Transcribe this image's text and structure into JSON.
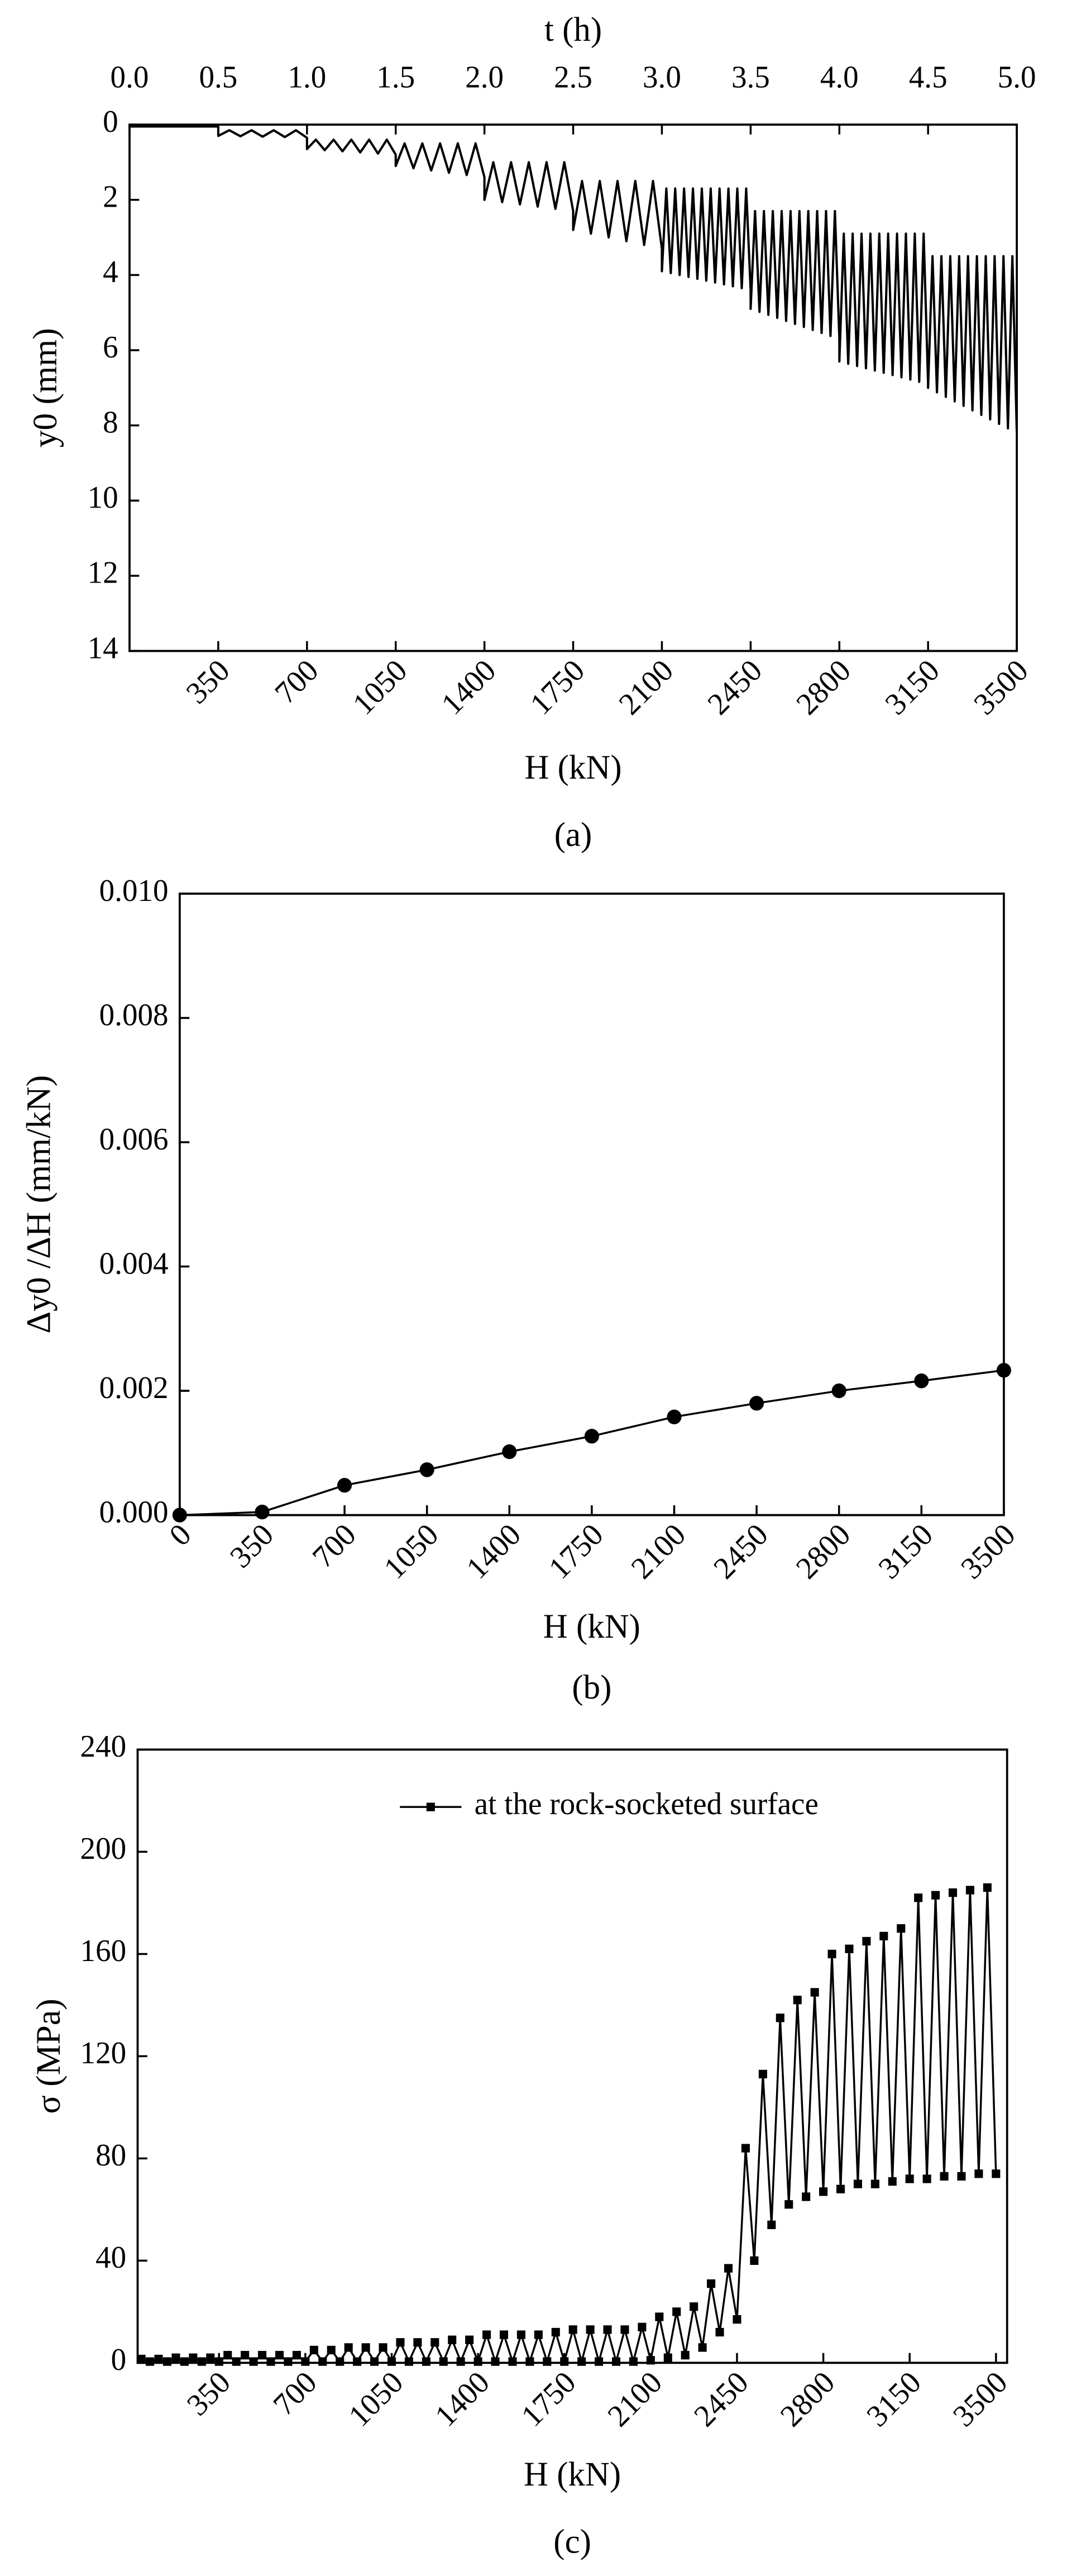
{
  "chart_data": [
    {
      "type": "line",
      "caption": "(a)",
      "xlabel": "t (h)",
      "x2label": "H (kN)",
      "ylabel": "y0 (mm)",
      "xaxis_position": "top",
      "yinvert": true,
      "xlim": [
        0,
        5
      ],
      "xticks": [
        {
          "value": 0,
          "label": "0.0"
        },
        0.5,
        {
          "value": 1,
          "label": "1.0"
        },
        1.5,
        {
          "value": 2,
          "label": "2.0"
        },
        2.5,
        {
          "value": 3,
          "label": "3.0"
        },
        3.5,
        {
          "value": 4,
          "label": "4.0"
        },
        4.5,
        {
          "value": 5,
          "label": "5.0"
        }
      ],
      "x2lim": [
        0,
        3500
      ],
      "x2ticks": [
        350,
        700,
        1050,
        1400,
        1750,
        2100,
        2450,
        2800,
        3150,
        3500
      ],
      "ylim": [
        0,
        14
      ],
      "yticks": [
        0,
        2,
        4,
        6,
        8,
        10,
        12,
        14
      ],
      "x": [
        0,
        0.5,
        0.5,
        0.5625,
        0.625,
        0.6875,
        0.75,
        0.8125,
        0.875,
        0.9375,
        1,
        1,
        1.05,
        1.1,
        1.15,
        1.2,
        1.25,
        1.3,
        1.35,
        1.4,
        1.45,
        1.5,
        1.5,
        1.55,
        1.6,
        1.65,
        1.7,
        1.75,
        1.8,
        1.85,
        1.9,
        1.95,
        2,
        2,
        2.05,
        2.1,
        2.15,
        2.2,
        2.25,
        2.3,
        2.35,
        2.4,
        2.45,
        2.5,
        2.5,
        2.55,
        2.6,
        2.65,
        2.7,
        2.75,
        2.8,
        2.85,
        2.9,
        2.95,
        3,
        3,
        3.025,
        3.05,
        3.075,
        3.1,
        3.125,
        3.15,
        3.175,
        3.2,
        3.225,
        3.25,
        3.275,
        3.3,
        3.325,
        3.35,
        3.375,
        3.4,
        3.425,
        3.45,
        3.475,
        3.5,
        3.5,
        3.525,
        3.55,
        3.575,
        3.6,
        3.625,
        3.65,
        3.675,
        3.7,
        3.725,
        3.75,
        3.775,
        3.8,
        3.825,
        3.85,
        3.875,
        3.9,
        3.925,
        3.95,
        3.975,
        4,
        4,
        4.025,
        4.05,
        4.075,
        4.1,
        4.125,
        4.15,
        4.175,
        4.2,
        4.225,
        4.25,
        4.275,
        4.3,
        4.325,
        4.35,
        4.375,
        4.4,
        4.425,
        4.45,
        4.475,
        4.5,
        4.5,
        4.525,
        4.55,
        4.575,
        4.6,
        4.625,
        4.65,
        4.675,
        4.7,
        4.725,
        4.75,
        4.775,
        4.8,
        4.825,
        4.85,
        4.875,
        4.9,
        4.925,
        4.95,
        4.975,
        5
      ],
      "series": [
        {
          "color": "#000000",
          "values": [
            0.05,
            0.05,
            0.3,
            0.15,
            0.31,
            0.15,
            0.32,
            0.15,
            0.33,
            0.15,
            0.35,
            0.65,
            0.4,
            0.68,
            0.4,
            0.71,
            0.4,
            0.74,
            0.4,
            0.77,
            0.4,
            0.8,
            1.1,
            0.5,
            1.16,
            0.5,
            1.22,
            0.5,
            1.28,
            0.5,
            1.34,
            0.5,
            1.4,
            2,
            1,
            2.06,
            1,
            2.12,
            1,
            2.18,
            1,
            2.24,
            1,
            2.3,
            2.8,
            1.5,
            2.9,
            1.5,
            3,
            1.5,
            3.1,
            1.5,
            3.2,
            1.5,
            3.3,
            3.9,
            1.7,
            3.95,
            1.7,
            4,
            1.7,
            4.05,
            1.7,
            4.1,
            1.7,
            4.15,
            1.7,
            4.2,
            1.7,
            4.25,
            1.7,
            4.3,
            1.7,
            4.35,
            1.7,
            4.4,
            4.9,
            2.3,
            4.98,
            2.3,
            5.06,
            2.3,
            5.14,
            2.3,
            5.22,
            2.3,
            5.3,
            2.3,
            5.38,
            2.3,
            5.46,
            2.3,
            5.54,
            2.3,
            5.62,
            2.3,
            5.7,
            6.3,
            2.9,
            6.36,
            2.9,
            6.42,
            2.9,
            6.48,
            2.9,
            6.54,
            2.9,
            6.6,
            2.9,
            6.66,
            2.9,
            6.72,
            2.9,
            6.78,
            2.9,
            6.84,
            2.9,
            6.9,
            7,
            3.5,
            7.12,
            3.5,
            7.24,
            3.5,
            7.36,
            3.5,
            7.48,
            3.5,
            7.6,
            3.5,
            7.72,
            3.5,
            7.84,
            3.5,
            7.96,
            3.5,
            8.08,
            3.5,
            8.2
          ]
        }
      ]
    },
    {
      "type": "line",
      "caption": "(b)",
      "xlabel": "H (kN)",
      "ylabel": "Δy0 /ΔH (mm/kN)",
      "marker": "circle",
      "xlim": [
        0,
        3500
      ],
      "xticks": [
        0,
        350,
        700,
        1050,
        1400,
        1750,
        2100,
        2450,
        2800,
        3150,
        3500
      ],
      "ylim": [
        0,
        0.01
      ],
      "yticks": [
        {
          "value": 0,
          "label": "0.000"
        },
        {
          "value": 0.002,
          "label": "0.002"
        },
        {
          "value": 0.004,
          "label": "0.004"
        },
        {
          "value": 0.006,
          "label": "0.006"
        },
        {
          "value": 0.008,
          "label": "0.008"
        },
        {
          "value": 0.01,
          "label": "0.010"
        }
      ],
      "x": [
        0,
        350,
        700,
        1050,
        1400,
        1750,
        2100,
        2450,
        2800,
        3150,
        3500
      ],
      "series": [
        {
          "color": "#000000",
          "values": [
            0,
            5e-05,
            0.00048,
            0.00073,
            0.00102,
            0.00127,
            0.00158,
            0.0018,
            0.002,
            0.00216,
            0.00233
          ]
        }
      ]
    },
    {
      "type": "line",
      "caption": "(c)",
      "xlabel": "H (kN)",
      "ylabel": "σ (MPa)",
      "marker": "square",
      "legend": "upper right",
      "xlim": [
        20,
        3545
      ],
      "xticks": [
        350,
        700,
        1050,
        1400,
        1750,
        2100,
        2450,
        2800,
        3150,
        3500
      ],
      "ylim": [
        0,
        240
      ],
      "yticks": [
        0,
        40,
        80,
        120,
        160,
        200,
        240
      ],
      "x": [
        35,
        70,
        105,
        140,
        175,
        210,
        245,
        280,
        315,
        350,
        385,
        420,
        455,
        490,
        525,
        560,
        595,
        630,
        665,
        700,
        735,
        770,
        805,
        840,
        875,
        910,
        945,
        980,
        1015,
        1050,
        1085,
        1120,
        1155,
        1190,
        1225,
        1260,
        1295,
        1330,
        1365,
        1400,
        1435,
        1470,
        1505,
        1540,
        1575,
        1610,
        1645,
        1680,
        1715,
        1750,
        1785,
        1820,
        1855,
        1890,
        1925,
        1960,
        1995,
        2030,
        2065,
        2100,
        2135,
        2170,
        2205,
        2240,
        2275,
        2310,
        2345,
        2380,
        2415,
        2450,
        2485,
        2520,
        2555,
        2590,
        2625,
        2660,
        2695,
        2730,
        2765,
        2800,
        2835,
        2870,
        2905,
        2940,
        2975,
        3010,
        3045,
        3080,
        3115,
        3150,
        3185,
        3220,
        3255,
        3290,
        3325,
        3360,
        3395,
        3430,
        3465,
        3500
      ],
      "series": [
        {
          "name": "at the rock-socketed surface",
          "color": "#000000",
          "values": [
            1.5,
            0.5,
            1.5,
            0.5,
            2,
            0.5,
            2,
            0.5,
            2,
            0.5,
            3,
            0.5,
            3,
            0.5,
            3,
            0.5,
            3,
            0.5,
            3,
            0.5,
            5,
            0.5,
            5,
            0.5,
            6,
            0.5,
            6,
            0.5,
            6,
            0.5,
            8,
            0.5,
            8,
            0.5,
            8,
            0.5,
            9,
            0.5,
            9,
            0.5,
            11,
            0.5,
            11,
            0.5,
            11,
            0.5,
            11,
            0.5,
            12,
            0.5,
            13,
            0.5,
            13,
            0.5,
            13,
            0.5,
            13,
            0.5,
            14,
            1,
            18,
            2,
            20,
            3,
            22,
            6,
            31,
            12,
            37,
            17,
            84,
            40,
            113,
            54,
            135,
            62,
            142,
            65,
            145,
            67,
            160,
            68,
            162,
            70,
            165,
            70,
            167,
            71,
            170,
            72,
            182,
            72,
            183,
            73,
            184,
            73,
            185,
            74,
            186,
            74
          ]
        }
      ]
    }
  ]
}
